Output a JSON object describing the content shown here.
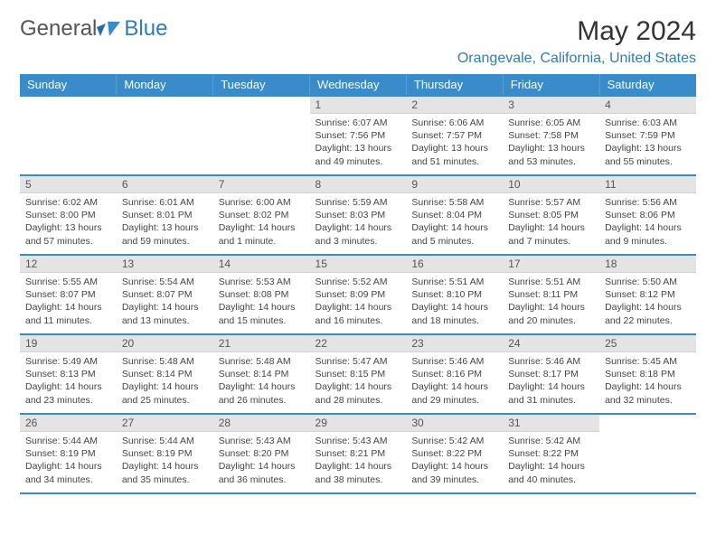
{
  "logo": {
    "general": "General",
    "blue": "Blue"
  },
  "title": "May 2024",
  "location": "Orangevale, California, United States",
  "weekdays": [
    "Sunday",
    "Monday",
    "Tuesday",
    "Wednesday",
    "Thursday",
    "Friday",
    "Saturday"
  ],
  "colors": {
    "header_bg": "#3a8bc9",
    "daynum_bg": "#e4e4e4",
    "accent": "#2e7db8",
    "text": "#333333"
  },
  "weeks": [
    [
      null,
      null,
      null,
      {
        "n": "1",
        "sunrise": "6:07 AM",
        "sunset": "7:56 PM",
        "daylight": "13 hours and 49 minutes."
      },
      {
        "n": "2",
        "sunrise": "6:06 AM",
        "sunset": "7:57 PM",
        "daylight": "13 hours and 51 minutes."
      },
      {
        "n": "3",
        "sunrise": "6:05 AM",
        "sunset": "7:58 PM",
        "daylight": "13 hours and 53 minutes."
      },
      {
        "n": "4",
        "sunrise": "6:03 AM",
        "sunset": "7:59 PM",
        "daylight": "13 hours and 55 minutes."
      }
    ],
    [
      {
        "n": "5",
        "sunrise": "6:02 AM",
        "sunset": "8:00 PM",
        "daylight": "13 hours and 57 minutes."
      },
      {
        "n": "6",
        "sunrise": "6:01 AM",
        "sunset": "8:01 PM",
        "daylight": "13 hours and 59 minutes."
      },
      {
        "n": "7",
        "sunrise": "6:00 AM",
        "sunset": "8:02 PM",
        "daylight": "14 hours and 1 minute."
      },
      {
        "n": "8",
        "sunrise": "5:59 AM",
        "sunset": "8:03 PM",
        "daylight": "14 hours and 3 minutes."
      },
      {
        "n": "9",
        "sunrise": "5:58 AM",
        "sunset": "8:04 PM",
        "daylight": "14 hours and 5 minutes."
      },
      {
        "n": "10",
        "sunrise": "5:57 AM",
        "sunset": "8:05 PM",
        "daylight": "14 hours and 7 minutes."
      },
      {
        "n": "11",
        "sunrise": "5:56 AM",
        "sunset": "8:06 PM",
        "daylight": "14 hours and 9 minutes."
      }
    ],
    [
      {
        "n": "12",
        "sunrise": "5:55 AM",
        "sunset": "8:07 PM",
        "daylight": "14 hours and 11 minutes."
      },
      {
        "n": "13",
        "sunrise": "5:54 AM",
        "sunset": "8:07 PM",
        "daylight": "14 hours and 13 minutes."
      },
      {
        "n": "14",
        "sunrise": "5:53 AM",
        "sunset": "8:08 PM",
        "daylight": "14 hours and 15 minutes."
      },
      {
        "n": "15",
        "sunrise": "5:52 AM",
        "sunset": "8:09 PM",
        "daylight": "14 hours and 16 minutes."
      },
      {
        "n": "16",
        "sunrise": "5:51 AM",
        "sunset": "8:10 PM",
        "daylight": "14 hours and 18 minutes."
      },
      {
        "n": "17",
        "sunrise": "5:51 AM",
        "sunset": "8:11 PM",
        "daylight": "14 hours and 20 minutes."
      },
      {
        "n": "18",
        "sunrise": "5:50 AM",
        "sunset": "8:12 PM",
        "daylight": "14 hours and 22 minutes."
      }
    ],
    [
      {
        "n": "19",
        "sunrise": "5:49 AM",
        "sunset": "8:13 PM",
        "daylight": "14 hours and 23 minutes."
      },
      {
        "n": "20",
        "sunrise": "5:48 AM",
        "sunset": "8:14 PM",
        "daylight": "14 hours and 25 minutes."
      },
      {
        "n": "21",
        "sunrise": "5:48 AM",
        "sunset": "8:14 PM",
        "daylight": "14 hours and 26 minutes."
      },
      {
        "n": "22",
        "sunrise": "5:47 AM",
        "sunset": "8:15 PM",
        "daylight": "14 hours and 28 minutes."
      },
      {
        "n": "23",
        "sunrise": "5:46 AM",
        "sunset": "8:16 PM",
        "daylight": "14 hours and 29 minutes."
      },
      {
        "n": "24",
        "sunrise": "5:46 AM",
        "sunset": "8:17 PM",
        "daylight": "14 hours and 31 minutes."
      },
      {
        "n": "25",
        "sunrise": "5:45 AM",
        "sunset": "8:18 PM",
        "daylight": "14 hours and 32 minutes."
      }
    ],
    [
      {
        "n": "26",
        "sunrise": "5:44 AM",
        "sunset": "8:19 PM",
        "daylight": "14 hours and 34 minutes."
      },
      {
        "n": "27",
        "sunrise": "5:44 AM",
        "sunset": "8:19 PM",
        "daylight": "14 hours and 35 minutes."
      },
      {
        "n": "28",
        "sunrise": "5:43 AM",
        "sunset": "8:20 PM",
        "daylight": "14 hours and 36 minutes."
      },
      {
        "n": "29",
        "sunrise": "5:43 AM",
        "sunset": "8:21 PM",
        "daylight": "14 hours and 38 minutes."
      },
      {
        "n": "30",
        "sunrise": "5:42 AM",
        "sunset": "8:22 PM",
        "daylight": "14 hours and 39 minutes."
      },
      {
        "n": "31",
        "sunrise": "5:42 AM",
        "sunset": "8:22 PM",
        "daylight": "14 hours and 40 minutes."
      },
      null
    ]
  ],
  "labels": {
    "sunrise": "Sunrise:",
    "sunset": "Sunset:",
    "daylight": "Daylight:"
  }
}
